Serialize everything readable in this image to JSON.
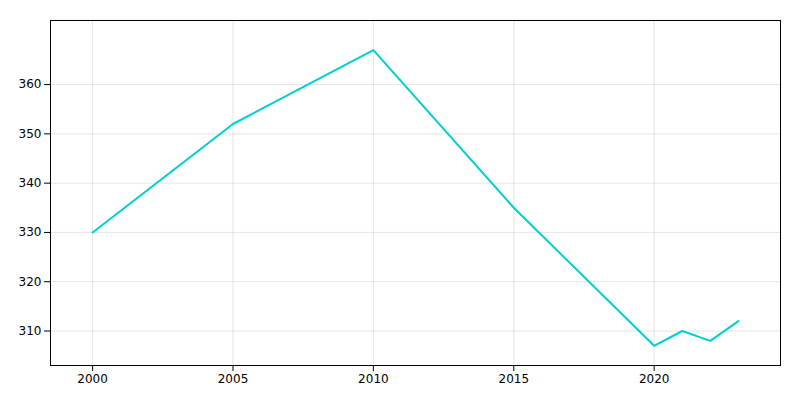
{
  "chart_data": {
    "type": "line",
    "x": [
      2000,
      2005,
      2010,
      2015,
      2020,
      2021,
      2022,
      2023
    ],
    "values": [
      330,
      352,
      367,
      335,
      307,
      310,
      308,
      312
    ],
    "color": "#00CED1",
    "xlim": [
      1998.5,
      2024.5
    ],
    "ylim": [
      303,
      373
    ],
    "xticks": [
      2000,
      2005,
      2010,
      2015,
      2020
    ],
    "yticks": [
      310,
      320,
      330,
      340,
      350,
      360
    ],
    "grid": true
  }
}
